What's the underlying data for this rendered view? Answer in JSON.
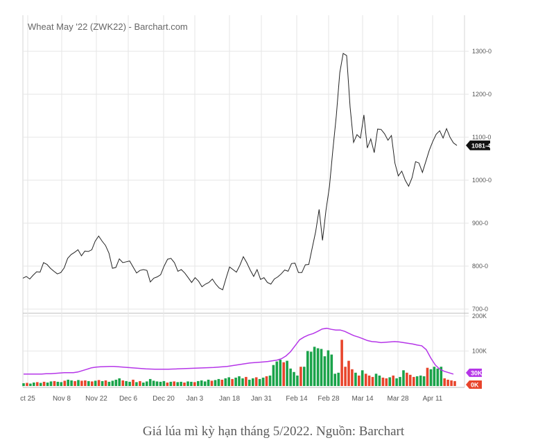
{
  "caption": "Giá lúa mì kỳ hạn tháng 5/2022. Nguồn: Barchart",
  "chart_data": [
    {
      "type": "line",
      "title": "Wheat May '22 (ZWK22) - Barchart.com",
      "xlabel": "",
      "ylabel": "",
      "x_tick_labels": [
        "ct 25",
        "Nov 8",
        "Nov 22",
        "Dec 6",
        "Dec 20",
        "Jan 3",
        "Jan 18",
        "Jan 31",
        "Feb 14",
        "Feb 28",
        "Mar 14",
        "Mar 28",
        "Apr 11"
      ],
      "y_tick_labels": [
        "1300-0",
        "1200-0",
        "1100-0",
        "1000-0",
        "900-0",
        "800-0",
        "700-0"
      ],
      "ylim": [
        700,
        1340
      ],
      "grid": true,
      "last_price_label": "1081-4",
      "series": [
        {
          "values": [
            772,
            776,
            770,
            779,
            787,
            786,
            808,
            804,
            795,
            788,
            782,
            785,
            796,
            818,
            827,
            832,
            838,
            824,
            835,
            834,
            838,
            858,
            870,
            858,
            848,
            830,
            795,
            797,
            817,
            808,
            810,
            812,
            798,
            784,
            790,
            792,
            790,
            763,
            772,
            775,
            780,
            800,
            816,
            818,
            808,
            788,
            792,
            784,
            773,
            762,
            773,
            765,
            752,
            758,
            762,
            770,
            758,
            749,
            745,
            772,
            798,
            792,
            786,
            802,
            822,
            808,
            791,
            776,
            792,
            769,
            773,
            762,
            758,
            770,
            775,
            782,
            791,
            788,
            806,
            807,
            785,
            785,
            803,
            804,
            842,
            880,
            932,
            860,
            930,
            985,
            1070,
            1150,
            1250,
            1295,
            1290,
            1170,
            1088,
            1106,
            1098,
            1152,
            1075,
            1096,
            1064,
            1119,
            1118,
            1108,
            1093,
            1104,
            1040,
            1010,
            1021,
            1000,
            986,
            1006,
            1043,
            1040,
            1018,
            1044,
            1070,
            1090,
            1107,
            1115,
            1098,
            1120,
            1100,
            1087,
            1081
          ]
        }
      ]
    },
    {
      "type": "bar",
      "title": "",
      "ylabel": "",
      "y_tick_labels": [
        "200K",
        "100K",
        "30K",
        "0K"
      ],
      "ylim": [
        0,
        200000
      ],
      "bars": [
        {
          "v": 8000,
          "c": "g"
        },
        {
          "v": 9000,
          "c": "r"
        },
        {
          "v": 7000,
          "c": "g"
        },
        {
          "v": 10000,
          "c": "g"
        },
        {
          "v": 11000,
          "c": "r"
        },
        {
          "v": 9000,
          "c": "g"
        },
        {
          "v": 12000,
          "c": "r"
        },
        {
          "v": 10000,
          "c": "g"
        },
        {
          "v": 13000,
          "c": "g"
        },
        {
          "v": 14000,
          "c": "r"
        },
        {
          "v": 12000,
          "c": "g"
        },
        {
          "v": 11000,
          "c": "g"
        },
        {
          "v": 15000,
          "c": "r"
        },
        {
          "v": 18000,
          "c": "g"
        },
        {
          "v": 16000,
          "c": "g"
        },
        {
          "v": 14000,
          "c": "r"
        },
        {
          "v": 17000,
          "c": "g"
        },
        {
          "v": 15000,
          "c": "r"
        },
        {
          "v": 16000,
          "c": "r"
        },
        {
          "v": 14000,
          "c": "g"
        },
        {
          "v": 13000,
          "c": "r"
        },
        {
          "v": 15000,
          "c": "g"
        },
        {
          "v": 17000,
          "c": "r"
        },
        {
          "v": 14000,
          "c": "g"
        },
        {
          "v": 16000,
          "c": "r"
        },
        {
          "v": 12000,
          "c": "g"
        },
        {
          "v": 15000,
          "c": "g"
        },
        {
          "v": 18000,
          "c": "g"
        },
        {
          "v": 22000,
          "c": "g"
        },
        {
          "v": 16000,
          "c": "r"
        },
        {
          "v": 14000,
          "c": "g"
        },
        {
          "v": 12000,
          "c": "g"
        },
        {
          "v": 18000,
          "c": "r"
        },
        {
          "v": 11000,
          "c": "g"
        },
        {
          "v": 14000,
          "c": "r"
        },
        {
          "v": 10000,
          "c": "g"
        },
        {
          "v": 13000,
          "c": "g"
        },
        {
          "v": 20000,
          "c": "g"
        },
        {
          "v": 15000,
          "c": "g"
        },
        {
          "v": 13000,
          "c": "g"
        },
        {
          "v": 12000,
          "c": "g"
        },
        {
          "v": 14000,
          "c": "g"
        },
        {
          "v": 10000,
          "c": "r"
        },
        {
          "v": 12000,
          "c": "g"
        },
        {
          "v": 13000,
          "c": "r"
        },
        {
          "v": 11000,
          "c": "g"
        },
        {
          "v": 12000,
          "c": "g"
        },
        {
          "v": 10000,
          "c": "r"
        },
        {
          "v": 13000,
          "c": "g"
        },
        {
          "v": 12000,
          "c": "g"
        },
        {
          "v": 11000,
          "c": "r"
        },
        {
          "v": 14000,
          "c": "g"
        },
        {
          "v": 16000,
          "c": "g"
        },
        {
          "v": 13000,
          "c": "g"
        },
        {
          "v": 18000,
          "c": "g"
        },
        {
          "v": 15000,
          "c": "r"
        },
        {
          "v": 17000,
          "c": "g"
        },
        {
          "v": 20000,
          "c": "g"
        },
        {
          "v": 18000,
          "c": "r"
        },
        {
          "v": 22000,
          "c": "g"
        },
        {
          "v": 25000,
          "c": "g"
        },
        {
          "v": 20000,
          "c": "r"
        },
        {
          "v": 24000,
          "c": "g"
        },
        {
          "v": 28000,
          "c": "g"
        },
        {
          "v": 22000,
          "c": "g"
        },
        {
          "v": 26000,
          "c": "r"
        },
        {
          "v": 18000,
          "c": "g"
        },
        {
          "v": 22000,
          "c": "g"
        },
        {
          "v": 25000,
          "c": "r"
        },
        {
          "v": 20000,
          "c": "g"
        },
        {
          "v": 24000,
          "c": "g"
        },
        {
          "v": 28000,
          "c": "r"
        },
        {
          "v": 30000,
          "c": "g"
        },
        {
          "v": 60000,
          "c": "g"
        },
        {
          "v": 70000,
          "c": "g"
        },
        {
          "v": 75000,
          "c": "g"
        },
        {
          "v": 68000,
          "c": "r"
        },
        {
          "v": 72000,
          "c": "g"
        },
        {
          "v": 50000,
          "c": "g"
        },
        {
          "v": 40000,
          "c": "g"
        },
        {
          "v": 30000,
          "c": "g"
        },
        {
          "v": 55000,
          "c": "r"
        },
        {
          "v": 55000,
          "c": "g"
        },
        {
          "v": 100000,
          "c": "g"
        },
        {
          "v": 98000,
          "c": "g"
        },
        {
          "v": 112000,
          "c": "g"
        },
        {
          "v": 108000,
          "c": "g"
        },
        {
          "v": 106000,
          "c": "g"
        },
        {
          "v": 85000,
          "c": "g"
        },
        {
          "v": 102000,
          "c": "g"
        },
        {
          "v": 90000,
          "c": "g"
        },
        {
          "v": 35000,
          "c": "g"
        },
        {
          "v": 38000,
          "c": "g"
        },
        {
          "v": 132000,
          "c": "r"
        },
        {
          "v": 55000,
          "c": "r"
        },
        {
          "v": 72000,
          "c": "r"
        },
        {
          "v": 48000,
          "c": "r"
        },
        {
          "v": 38000,
          "c": "g"
        },
        {
          "v": 30000,
          "c": "r"
        },
        {
          "v": 45000,
          "c": "g"
        },
        {
          "v": 35000,
          "c": "r"
        },
        {
          "v": 30000,
          "c": "r"
        },
        {
          "v": 26000,
          "c": "r"
        },
        {
          "v": 35000,
          "c": "g"
        },
        {
          "v": 30000,
          "c": "g"
        },
        {
          "v": 24000,
          "c": "r"
        },
        {
          "v": 22000,
          "c": "r"
        },
        {
          "v": 25000,
          "c": "g"
        },
        {
          "v": 30000,
          "c": "r"
        },
        {
          "v": 22000,
          "c": "g"
        },
        {
          "v": 26000,
          "c": "g"
        },
        {
          "v": 45000,
          "c": "g"
        },
        {
          "v": 38000,
          "c": "r"
        },
        {
          "v": 32000,
          "c": "r"
        },
        {
          "v": 26000,
          "c": "r"
        },
        {
          "v": 28000,
          "c": "g"
        },
        {
          "v": 30000,
          "c": "g"
        },
        {
          "v": 28000,
          "c": "g"
        },
        {
          "v": 52000,
          "c": "r"
        },
        {
          "v": 48000,
          "c": "g"
        },
        {
          "v": 55000,
          "c": "g"
        },
        {
          "v": 50000,
          "c": "g"
        },
        {
          "v": 55000,
          "c": "g"
        },
        {
          "v": 22000,
          "c": "r"
        },
        {
          "v": 18000,
          "c": "r"
        },
        {
          "v": 16000,
          "c": "r"
        },
        {
          "v": 14000,
          "c": "r"
        }
      ],
      "line": [
        34000,
        34000,
        34000,
        34000,
        34000,
        35000,
        35000,
        36000,
        37000,
        38000,
        38000,
        38000,
        40000,
        44000,
        48000,
        52000,
        54000,
        55000,
        55500,
        56000,
        56000,
        55000,
        54000,
        53000,
        52000,
        51000,
        50000,
        49000,
        48500,
        48000,
        48000,
        48000,
        48000,
        48500,
        49000,
        49500,
        50000,
        50500,
        51000,
        51500,
        52000,
        52500,
        53000,
        54000,
        55000,
        56000,
        58000,
        60000,
        62000,
        64000,
        66000,
        67000,
        68000,
        69000,
        70000,
        72000,
        74000,
        78000,
        86000,
        98000,
        115000,
        132000,
        140000,
        146000,
        150000,
        156000,
        163000,
        165000,
        162000,
        160000,
        160000,
        156000,
        150000,
        144000,
        140000,
        135000,
        130000,
        127000,
        126000,
        124000,
        125000,
        126000,
        127000,
        126000,
        124000,
        122000,
        120000,
        117000,
        115000,
        104000,
        80000,
        60000,
        48000,
        42000,
        38000,
        34000
      ],
      "colors": {
        "up": "#1aa34a",
        "down": "#e8452c",
        "avg": "#b535e8"
      },
      "right_badges": [
        {
          "text": "30K",
          "color": "#b535e8"
        },
        {
          "text": "0K",
          "color": "#e8452c"
        }
      ]
    }
  ]
}
